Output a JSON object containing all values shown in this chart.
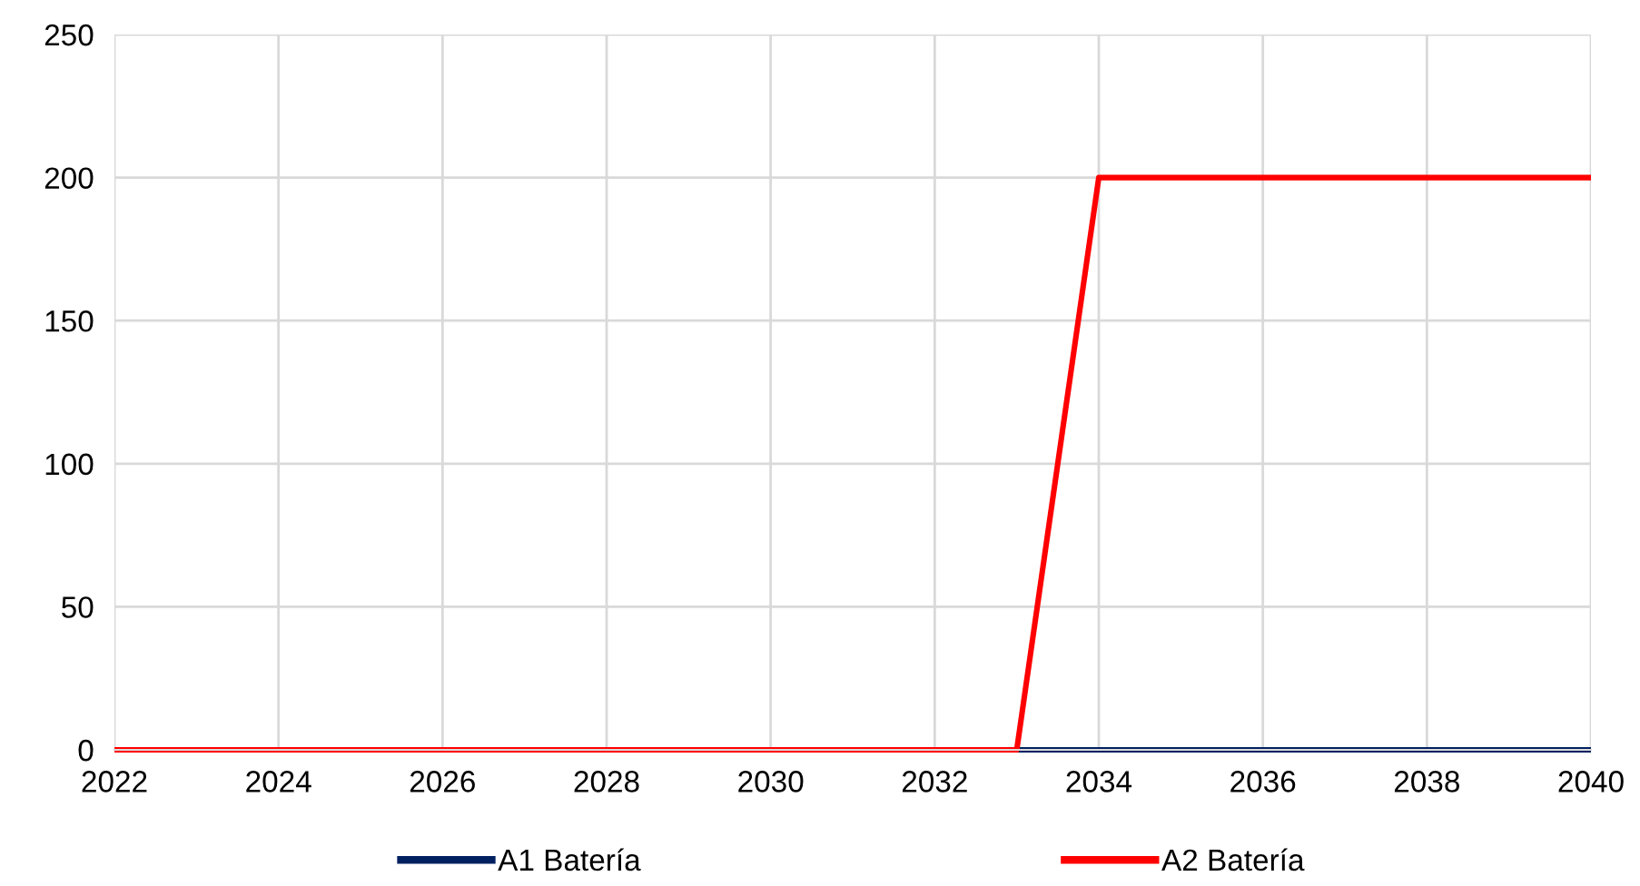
{
  "chart_data": {
    "type": "line",
    "x": [
      2022,
      2023,
      2024,
      2025,
      2026,
      2027,
      2028,
      2029,
      2030,
      2031,
      2032,
      2033,
      2034,
      2035,
      2036,
      2037,
      2038,
      2039,
      2040
    ],
    "series": [
      {
        "name": "A1 Batería",
        "color": "#002060",
        "values": [
          null,
          null,
          null,
          null,
          null,
          null,
          null,
          null,
          null,
          null,
          null,
          0,
          0,
          0,
          0,
          0,
          0,
          0,
          0
        ]
      },
      {
        "name": "A2 Batería",
        "color": "#ff0000",
        "values": [
          0,
          0,
          0,
          0,
          0,
          0,
          0,
          0,
          0,
          0,
          0,
          0,
          200,
          200,
          200,
          200,
          200,
          200,
          200
        ]
      }
    ],
    "xlim": [
      2022,
      2040
    ],
    "xticks": [
      2022,
      2024,
      2026,
      2028,
      2030,
      2032,
      2034,
      2036,
      2038,
      2040
    ],
    "ylim": [
      0,
      250
    ],
    "yticks": [
      0,
      50,
      100,
      150,
      200,
      250
    ],
    "grid": true,
    "legend": "bottom",
    "marker": "none",
    "line_style": "solid"
  }
}
